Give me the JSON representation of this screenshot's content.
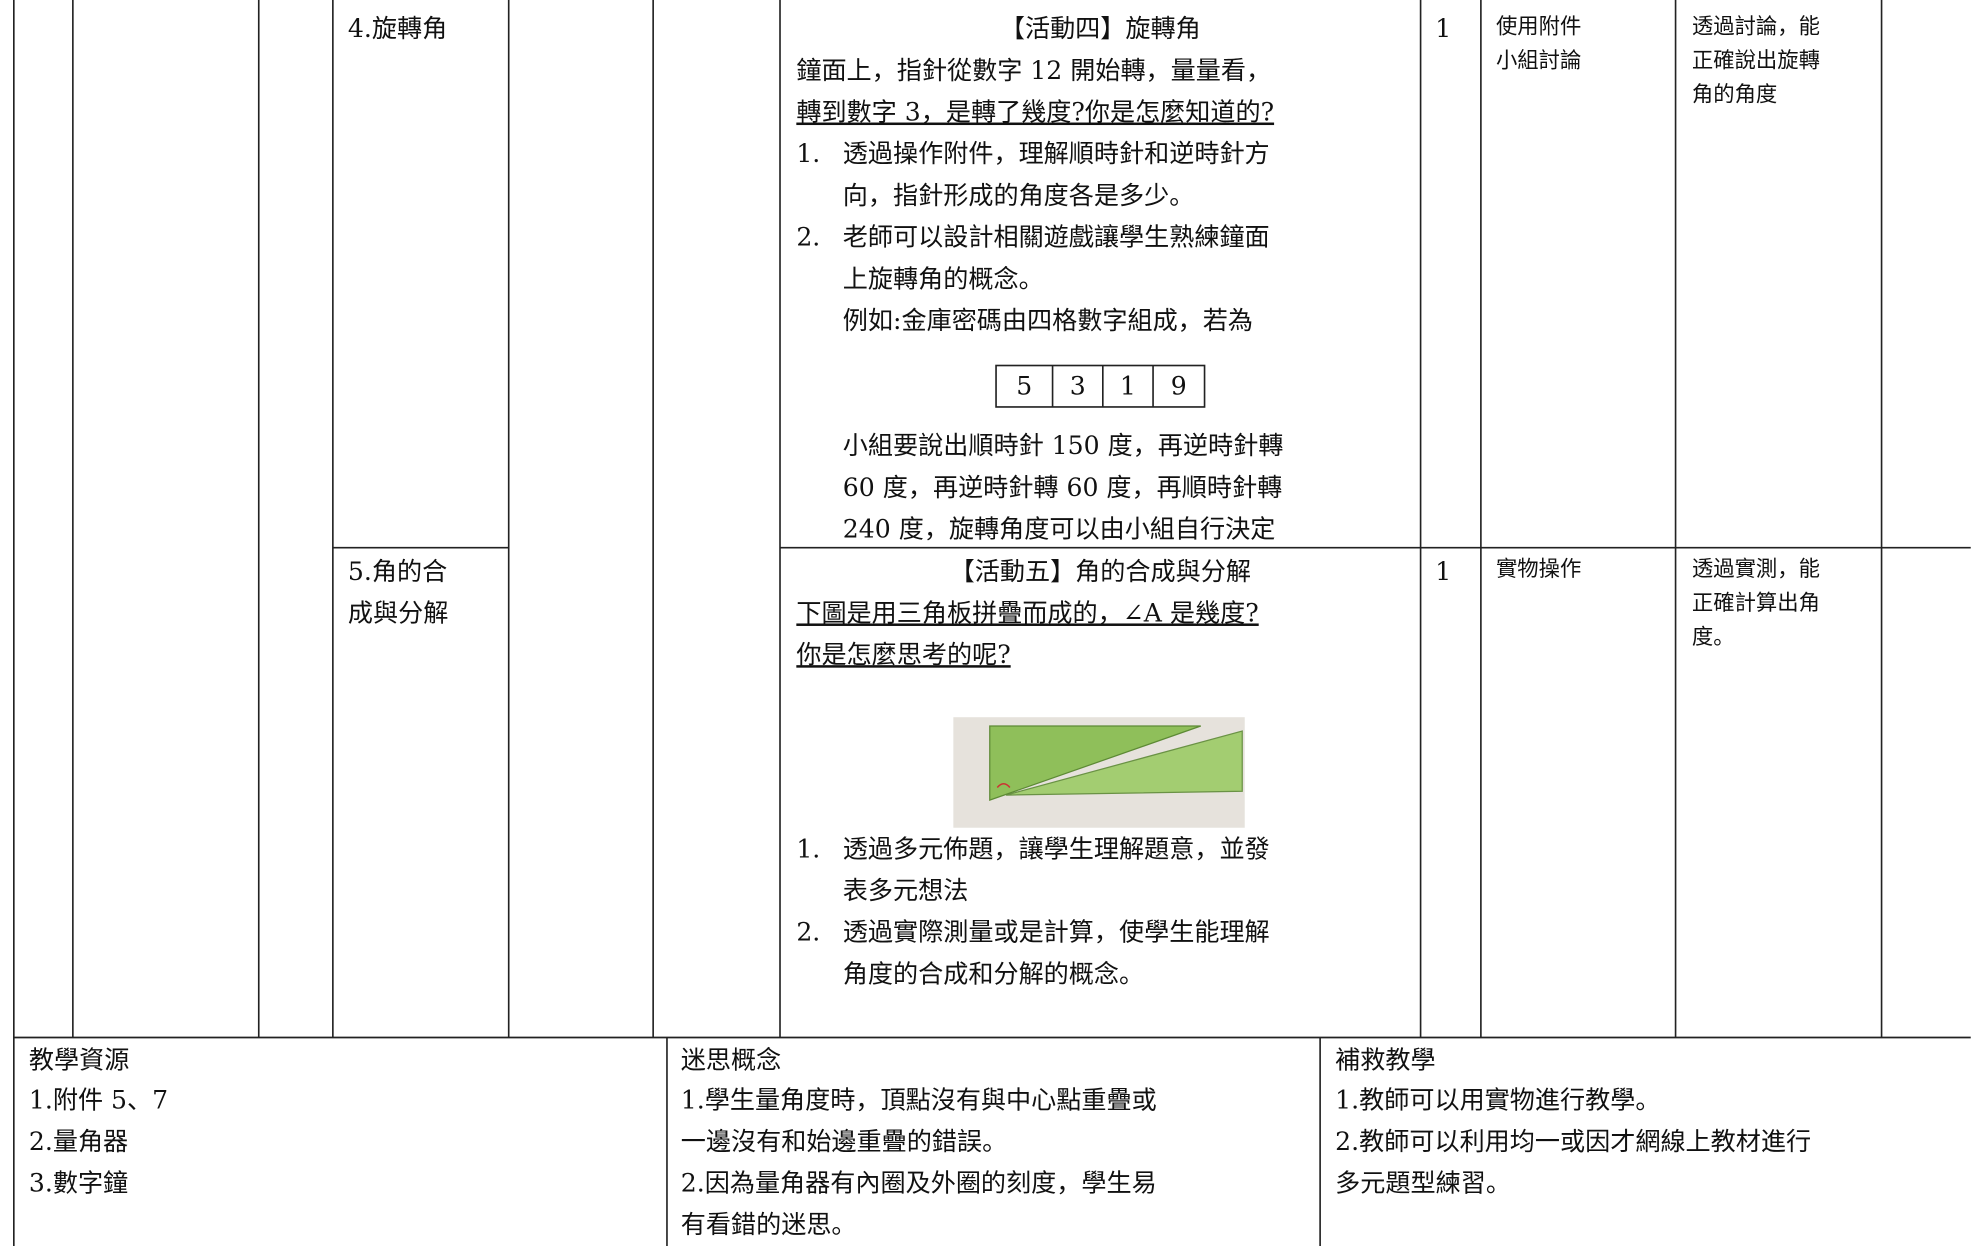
{
  "rows": [
    {
      "unit": [
        "4.旋轉角"
      ],
      "activity": {
        "title": "【活動四】旋轉角",
        "intro": [
          "鐘面上，指針從數字 12 開始轉，量量看，"
        ],
        "question": [
          "轉到數字 3，是轉了幾度?你是怎麼知道的?"
        ],
        "steps": [
          {
            "number": "1.",
            "lines": [
              "透過操作附件，理解順時針和逆時針方",
              "向，指針形成的角度各是多少。"
            ]
          },
          {
            "number": "2.",
            "lines": [
              "老師可以設計相關遊戲讓學生熟練鐘面",
              "上旋轉角的概念。",
              "例如:金庫密碼由四格數字組成，若為"
            ]
          }
        ],
        "code": [
          5,
          3,
          1,
          9
        ],
        "after": [
          "小組要說出順時針 150 度，再逆時針轉",
          "60 度，再逆時針轉 60 度，再順時針轉",
          "240 度，旋轉角度可以由小組自行決定"
        ]
      },
      "periods": 1,
      "method": [
        "使用附件",
        "小組討論"
      ],
      "assessment": [
        "透過討論，能",
        "正確說出旋轉",
        "角的角度"
      ]
    },
    {
      "unit": [
        "5.角的合",
        "成與分解"
      ],
      "activity": {
        "title": "【活動五】角的合成與分解",
        "intro": [],
        "question": [
          "下圖是用三角板拼疊而成的，∠A 是幾度?",
          "你是怎麼思考的呢?"
        ],
        "steps": [
          {
            "number": "1.",
            "lines": [
              "透過多元佈題，讓學生理解題意，並發",
              "表多元想法"
            ]
          },
          {
            "number": "2.",
            "lines": [
              "透過實際測量或是計算，使學生能理解",
              "角度的合成和分解的概念。"
            ]
          }
        ]
      },
      "periods": 1,
      "method": [
        "實物操作"
      ],
      "assessment": [
        "透過實測，能",
        "正確計算出角",
        "度。"
      ]
    }
  ],
  "footer": {
    "resources": {
      "title": "教學資源",
      "lines": [
        "1.附件 5、7",
        "2.量角器",
        "3.數字鐘"
      ]
    },
    "misconceptions": {
      "title": "迷思概念",
      "lines": [
        "1.學生量角度時，頂點沒有與中心點重疊或",
        "一邊沒有和始邊重疊的錯誤。",
        "2.因為量角器有內圈及外圈的刻度，學生易",
        "有看錯的迷思。"
      ]
    },
    "remedial": {
      "title": "補救教學",
      "lines": [
        "1.教師可以用實物進行教學。",
        "2.教師可以利用均一或因才網線上教材進行",
        "多元題型練習。"
      ]
    }
  }
}
